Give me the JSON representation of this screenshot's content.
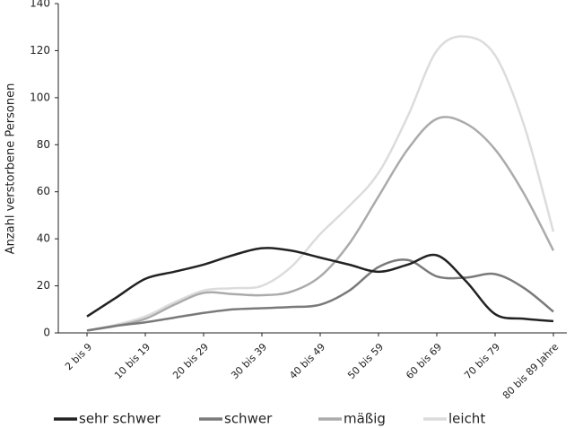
{
  "chart_data": {
    "type": "line",
    "y_label": "Anzahl verstorbene Personen",
    "categories": [
      "2 bis 9",
      null,
      "10 bis 19",
      null,
      "20 bis 29",
      null,
      "30 bis 39",
      null,
      "40 bis 49",
      null,
      "50 bis 59",
      null,
      "60 bis 69",
      null,
      "70 bis 79",
      null,
      "80 bis 89 Jahre"
    ],
    "series": [
      {
        "name": "sehr schwer",
        "color": "#222222",
        "values": [
          7,
          15,
          23,
          26,
          29,
          33,
          36,
          35,
          32,
          29,
          26,
          29,
          33,
          22,
          8,
          6,
          5
        ]
      },
      {
        "name": "schwer",
        "color": "#7a7a7a",
        "values": [
          1,
          3,
          4.5,
          6.5,
          8.5,
          10,
          10.5,
          11,
          12,
          18,
          28,
          31,
          24,
          23.5,
          25,
          19,
          9
        ]
      },
      {
        "name": "mäßig",
        "color": "#ababab",
        "values": [
          1,
          3,
          6,
          12,
          17,
          16.5,
          16,
          17.5,
          24,
          38,
          58,
          78,
          91,
          89,
          78,
          59,
          35
        ]
      },
      {
        "name": "leicht",
        "color": "#dcdcdc",
        "values": [
          1,
          3.5,
          7,
          13,
          18,
          19,
          20,
          28,
          42,
          54,
          68,
          92,
          120,
          126,
          118,
          88,
          43
        ]
      }
    ],
    "ylim": [
      0,
      140
    ],
    "yticks": [
      0,
      20,
      40,
      60,
      80,
      100,
      120,
      140
    ],
    "legend": "bottom"
  }
}
